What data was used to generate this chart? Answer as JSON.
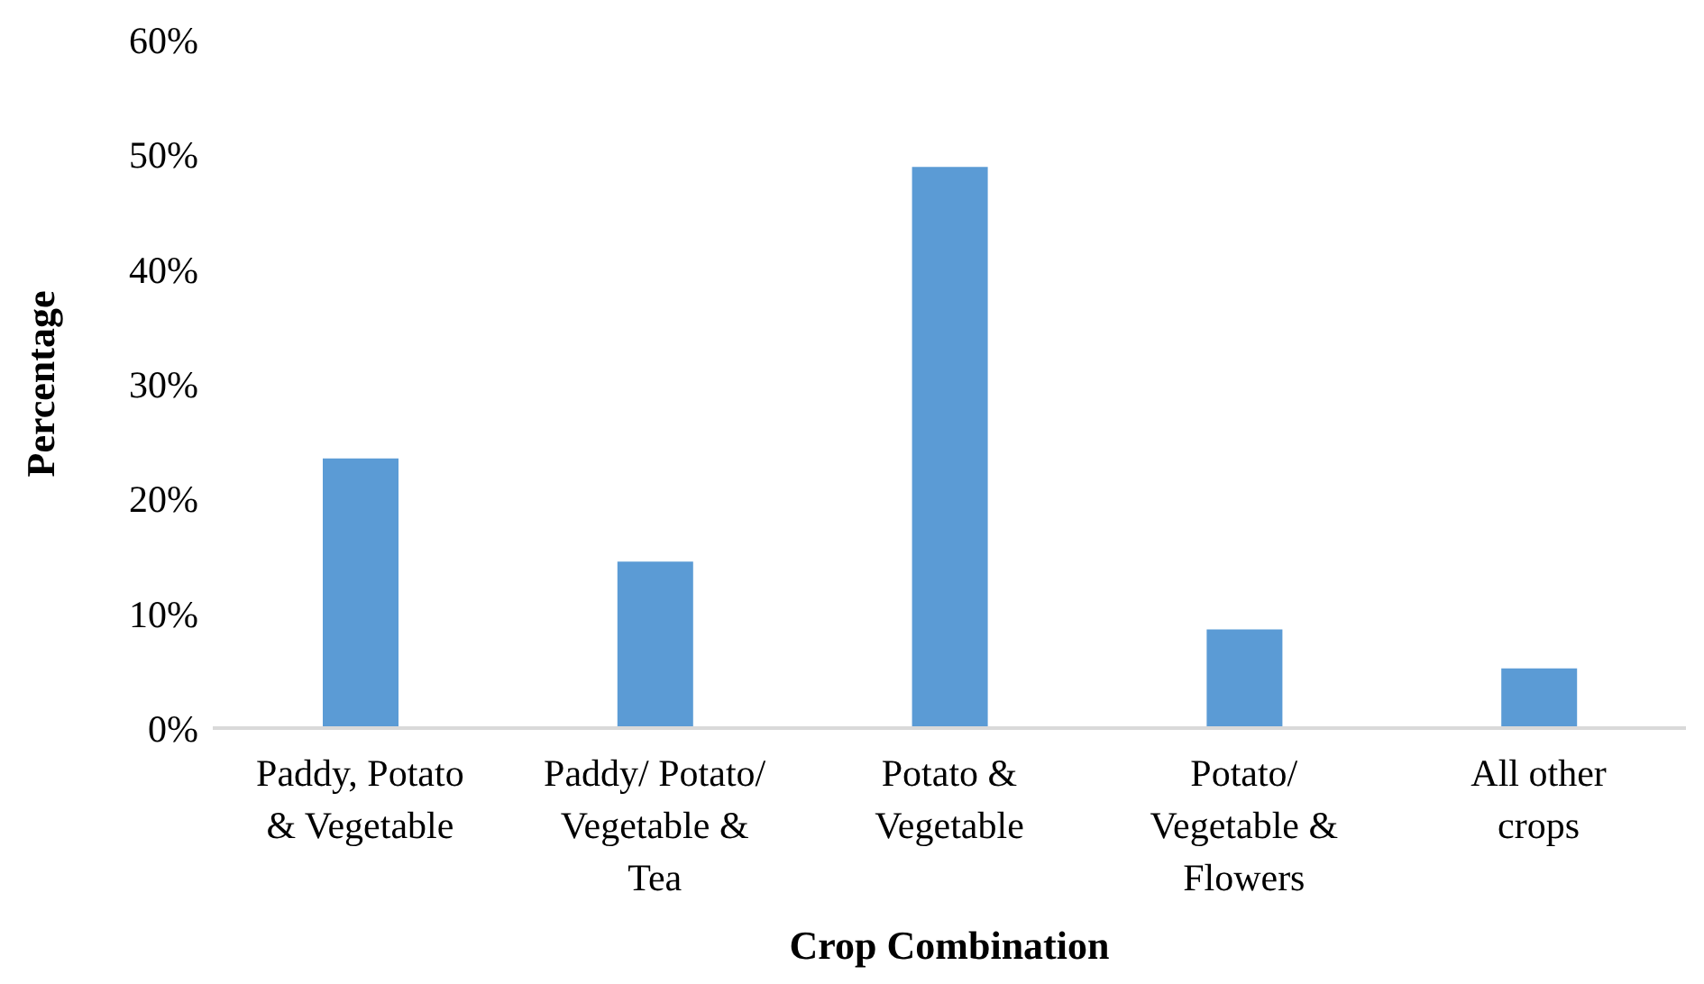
{
  "chart_data": {
    "type": "bar",
    "xlabel": "Crop Combination",
    "ylabel": "Percentage",
    "categories": [
      "Paddy, Potato & Vegetable",
      "Paddy/ Potato/ Vegetable & Tea",
      "Potato & Vegetable",
      "Potato/ Vegetable & Flowers",
      "All other crops"
    ],
    "values": [
      23.5,
      14.5,
      48.9,
      8.6,
      5.2
    ],
    "color": "#5b9bd5",
    "ylim": [
      0,
      60
    ],
    "yticks": [
      {
        "value": 0,
        "label": "0%"
      },
      {
        "value": 10,
        "label": "10%"
      },
      {
        "value": 20,
        "label": "20%"
      },
      {
        "value": 30,
        "label": "30%"
      },
      {
        "value": 40,
        "label": "40%"
      },
      {
        "value": 50,
        "label": "50%"
      },
      {
        "value": 60,
        "label": "60%"
      }
    ],
    "grid": false,
    "legend": false
  }
}
